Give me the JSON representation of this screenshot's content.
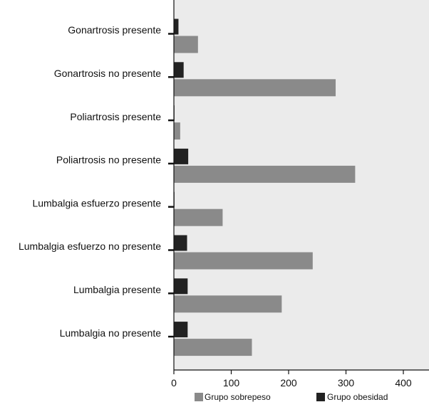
{
  "chart_data": {
    "type": "bar",
    "orientation": "horizontal",
    "categories": [
      "Gonartrosis presente",
      "Gonartrosis no presente",
      "Poliartrosis presente",
      "Poliartrosis no presente",
      "Lumbalgia esfuerzo presente",
      "Lumbalgia esfuerzo no presente",
      "Lumbalgia presente",
      "Lumbalgia no presente"
    ],
    "series": [
      {
        "name": "Grupo sobrepeso",
        "color": "#8a8a8a",
        "values": [
          42,
          282,
          11,
          316,
          85,
          242,
          188,
          136
        ]
      },
      {
        "name": "Grupo obesidad",
        "color": "#222222",
        "values": [
          8,
          17,
          1,
          25,
          1,
          23,
          24,
          24
        ]
      }
    ],
    "xlim": [
      0,
      440
    ],
    "xticks": [
      0,
      100,
      200,
      300,
      400
    ],
    "title": "",
    "xlabel": "",
    "ylabel": "",
    "legend_position": "bottom",
    "plot_background": "#ebebeb",
    "grid": false
  }
}
